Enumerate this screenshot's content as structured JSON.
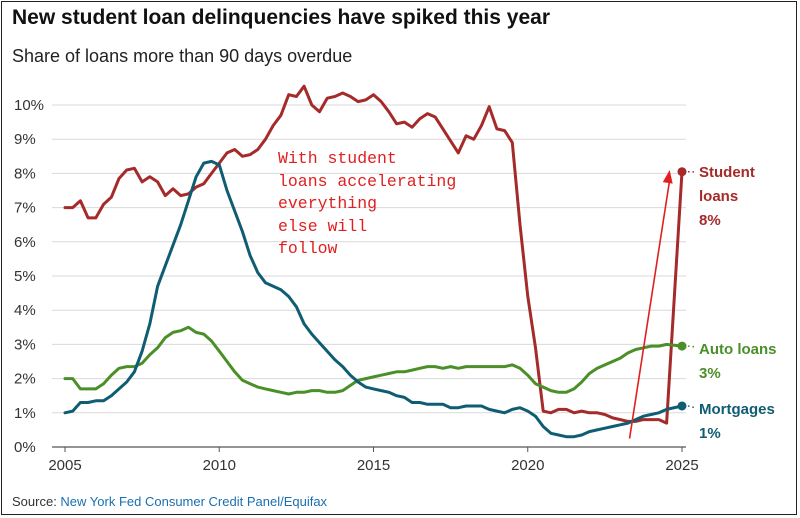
{
  "title": "New student loan delinquencies have spiked this year",
  "subtitle": "Share of loans more than 90 days overdue",
  "source_prefix": "Source: ",
  "source_link": "New York Fed Consumer Credit Panel/Equifax",
  "annotation": "With student\nloans accelerating\neverything\nelse will\nfollow",
  "colors": {
    "student": "#a52a2a",
    "auto": "#4b8f29",
    "mortgage": "#0f5d73",
    "annotation": "#e02020",
    "grid": "#d9d9d9"
  },
  "chart_data": {
    "type": "line",
    "title": "New student loan delinquencies have spiked this year",
    "subtitle": "Share of loans more than 90 days overdue",
    "xlabel": "",
    "ylabel": "",
    "xlim": [
      2005,
      2025
    ],
    "ylim": [
      0,
      10
    ],
    "x_ticks": [
      "2005",
      "2010",
      "2015",
      "2020",
      "2025"
    ],
    "y_ticks": [
      "0%",
      "1%",
      "2%",
      "3%",
      "4%",
      "5%",
      "6%",
      "7%",
      "8%",
      "9%",
      "10%"
    ],
    "grid": "horizontal",
    "series": [
      {
        "name": "Student loans",
        "label_lines": [
          "Student",
          "loans",
          "8%"
        ],
        "color_key": "student",
        "points": [
          [
            2005.0,
            7.0
          ],
          [
            2005.25,
            7.0
          ],
          [
            2005.5,
            7.2
          ],
          [
            2005.75,
            6.7
          ],
          [
            2006.0,
            6.7
          ],
          [
            2006.25,
            7.1
          ],
          [
            2006.5,
            7.3
          ],
          [
            2006.75,
            7.85
          ],
          [
            2007.0,
            8.1
          ],
          [
            2007.25,
            8.15
          ],
          [
            2007.5,
            7.75
          ],
          [
            2007.75,
            7.9
          ],
          [
            2008.0,
            7.75
          ],
          [
            2008.25,
            7.35
          ],
          [
            2008.5,
            7.55
          ],
          [
            2008.75,
            7.35
          ],
          [
            2009.0,
            7.4
          ],
          [
            2009.25,
            7.6
          ],
          [
            2009.5,
            7.7
          ],
          [
            2009.75,
            8.0
          ],
          [
            2010.0,
            8.3
          ],
          [
            2010.25,
            8.6
          ],
          [
            2010.5,
            8.7
          ],
          [
            2010.75,
            8.5
          ],
          [
            2011.0,
            8.55
          ],
          [
            2011.25,
            8.7
          ],
          [
            2011.5,
            9.0
          ],
          [
            2011.75,
            9.4
          ],
          [
            2012.0,
            9.7
          ],
          [
            2012.25,
            10.3
          ],
          [
            2012.5,
            10.25
          ],
          [
            2012.75,
            10.55
          ],
          [
            2013.0,
            10.0
          ],
          [
            2013.25,
            9.8
          ],
          [
            2013.5,
            10.2
          ],
          [
            2013.75,
            10.25
          ],
          [
            2014.0,
            10.35
          ],
          [
            2014.25,
            10.25
          ],
          [
            2014.5,
            10.1
          ],
          [
            2014.75,
            10.15
          ],
          [
            2015.0,
            10.3
          ],
          [
            2015.25,
            10.1
          ],
          [
            2015.5,
            9.8
          ],
          [
            2015.75,
            9.45
          ],
          [
            2016.0,
            9.5
          ],
          [
            2016.25,
            9.35
          ],
          [
            2016.5,
            9.6
          ],
          [
            2016.75,
            9.75
          ],
          [
            2017.0,
            9.65
          ],
          [
            2017.25,
            9.3
          ],
          [
            2017.5,
            8.95
          ],
          [
            2017.75,
            8.6
          ],
          [
            2018.0,
            9.1
          ],
          [
            2018.25,
            9.0
          ],
          [
            2018.5,
            9.4
          ],
          [
            2018.75,
            9.95
          ],
          [
            2019.0,
            9.3
          ],
          [
            2019.25,
            9.25
          ],
          [
            2019.5,
            8.9
          ],
          [
            2019.75,
            6.5
          ],
          [
            2020.0,
            4.4
          ],
          [
            2020.25,
            2.9
          ],
          [
            2020.5,
            1.05
          ],
          [
            2020.75,
            1.0
          ],
          [
            2021.0,
            1.1
          ],
          [
            2021.25,
            1.1
          ],
          [
            2021.5,
            1.0
          ],
          [
            2021.75,
            1.05
          ],
          [
            2022.0,
            1.0
          ],
          [
            2022.25,
            1.0
          ],
          [
            2022.5,
            0.95
          ],
          [
            2022.75,
            0.85
          ],
          [
            2023.0,
            0.8
          ],
          [
            2023.25,
            0.75
          ],
          [
            2023.5,
            0.75
          ],
          [
            2023.75,
            0.8
          ],
          [
            2024.0,
            0.8
          ],
          [
            2024.25,
            0.8
          ],
          [
            2024.5,
            0.7
          ],
          [
            2025.0,
            8.05
          ]
        ]
      },
      {
        "name": "Auto loans",
        "label_lines": [
          "Auto loans",
          "3%"
        ],
        "color_key": "auto",
        "points": [
          [
            2005.0,
            2.0
          ],
          [
            2005.25,
            2.0
          ],
          [
            2005.5,
            1.7
          ],
          [
            2005.75,
            1.7
          ],
          [
            2006.0,
            1.7
          ],
          [
            2006.25,
            1.85
          ],
          [
            2006.5,
            2.1
          ],
          [
            2006.75,
            2.3
          ],
          [
            2007.0,
            2.35
          ],
          [
            2007.25,
            2.35
          ],
          [
            2007.5,
            2.45
          ],
          [
            2007.75,
            2.7
          ],
          [
            2008.0,
            2.9
          ],
          [
            2008.25,
            3.2
          ],
          [
            2008.5,
            3.35
          ],
          [
            2008.75,
            3.4
          ],
          [
            2009.0,
            3.5
          ],
          [
            2009.25,
            3.35
          ],
          [
            2009.5,
            3.3
          ],
          [
            2009.75,
            3.1
          ],
          [
            2010.0,
            2.8
          ],
          [
            2010.25,
            2.5
          ],
          [
            2010.5,
            2.2
          ],
          [
            2010.75,
            1.95
          ],
          [
            2011.0,
            1.85
          ],
          [
            2011.25,
            1.75
          ],
          [
            2011.5,
            1.7
          ],
          [
            2011.75,
            1.65
          ],
          [
            2012.0,
            1.6
          ],
          [
            2012.25,
            1.55
          ],
          [
            2012.5,
            1.6
          ],
          [
            2012.75,
            1.6
          ],
          [
            2013.0,
            1.65
          ],
          [
            2013.25,
            1.65
          ],
          [
            2013.5,
            1.6
          ],
          [
            2013.75,
            1.6
          ],
          [
            2014.0,
            1.65
          ],
          [
            2014.25,
            1.8
          ],
          [
            2014.5,
            1.95
          ],
          [
            2014.75,
            2.0
          ],
          [
            2015.0,
            2.05
          ],
          [
            2015.25,
            2.1
          ],
          [
            2015.5,
            2.15
          ],
          [
            2015.75,
            2.2
          ],
          [
            2016.0,
            2.2
          ],
          [
            2016.25,
            2.25
          ],
          [
            2016.5,
            2.3
          ],
          [
            2016.75,
            2.35
          ],
          [
            2017.0,
            2.35
          ],
          [
            2017.25,
            2.3
          ],
          [
            2017.5,
            2.35
          ],
          [
            2017.75,
            2.3
          ],
          [
            2018.0,
            2.35
          ],
          [
            2018.25,
            2.35
          ],
          [
            2018.5,
            2.35
          ],
          [
            2018.75,
            2.35
          ],
          [
            2019.0,
            2.35
          ],
          [
            2019.25,
            2.35
          ],
          [
            2019.5,
            2.4
          ],
          [
            2019.75,
            2.3
          ],
          [
            2020.0,
            2.1
          ],
          [
            2020.25,
            1.85
          ],
          [
            2020.5,
            1.75
          ],
          [
            2020.75,
            1.65
          ],
          [
            2021.0,
            1.6
          ],
          [
            2021.25,
            1.6
          ],
          [
            2021.5,
            1.7
          ],
          [
            2021.75,
            1.9
          ],
          [
            2022.0,
            2.15
          ],
          [
            2022.25,
            2.3
          ],
          [
            2022.5,
            2.4
          ],
          [
            2022.75,
            2.5
          ],
          [
            2023.0,
            2.6
          ],
          [
            2023.25,
            2.75
          ],
          [
            2023.5,
            2.85
          ],
          [
            2023.75,
            2.9
          ],
          [
            2024.0,
            2.95
          ],
          [
            2024.25,
            2.95
          ],
          [
            2024.5,
            3.0
          ],
          [
            2025.0,
            2.95
          ]
        ]
      },
      {
        "name": "Mortgages",
        "label_lines": [
          "Mortgages",
          "1%"
        ],
        "color_key": "mortgage",
        "points": [
          [
            2005.0,
            1.0
          ],
          [
            2005.25,
            1.05
          ],
          [
            2005.5,
            1.3
          ],
          [
            2005.75,
            1.3
          ],
          [
            2006.0,
            1.35
          ],
          [
            2006.25,
            1.35
          ],
          [
            2006.5,
            1.5
          ],
          [
            2006.75,
            1.7
          ],
          [
            2007.0,
            1.9
          ],
          [
            2007.25,
            2.2
          ],
          [
            2007.5,
            2.8
          ],
          [
            2007.75,
            3.6
          ],
          [
            2008.0,
            4.7
          ],
          [
            2008.25,
            5.3
          ],
          [
            2008.5,
            5.9
          ],
          [
            2008.75,
            6.5
          ],
          [
            2009.0,
            7.2
          ],
          [
            2009.25,
            7.9
          ],
          [
            2009.5,
            8.3
          ],
          [
            2009.75,
            8.35
          ],
          [
            2010.0,
            8.25
          ],
          [
            2010.25,
            7.5
          ],
          [
            2010.5,
            6.9
          ],
          [
            2010.75,
            6.3
          ],
          [
            2011.0,
            5.6
          ],
          [
            2011.25,
            5.1
          ],
          [
            2011.5,
            4.8
          ],
          [
            2011.75,
            4.7
          ],
          [
            2012.0,
            4.6
          ],
          [
            2012.25,
            4.4
          ],
          [
            2012.5,
            4.1
          ],
          [
            2012.75,
            3.6
          ],
          [
            2013.0,
            3.3
          ],
          [
            2013.25,
            3.05
          ],
          [
            2013.5,
            2.8
          ],
          [
            2013.75,
            2.55
          ],
          [
            2014.0,
            2.35
          ],
          [
            2014.25,
            2.1
          ],
          [
            2014.5,
            1.9
          ],
          [
            2014.75,
            1.75
          ],
          [
            2015.0,
            1.7
          ],
          [
            2015.25,
            1.65
          ],
          [
            2015.5,
            1.6
          ],
          [
            2015.75,
            1.5
          ],
          [
            2016.0,
            1.45
          ],
          [
            2016.25,
            1.3
          ],
          [
            2016.5,
            1.3
          ],
          [
            2016.75,
            1.25
          ],
          [
            2017.0,
            1.25
          ],
          [
            2017.25,
            1.25
          ],
          [
            2017.5,
            1.15
          ],
          [
            2017.75,
            1.15
          ],
          [
            2018.0,
            1.2
          ],
          [
            2018.25,
            1.2
          ],
          [
            2018.5,
            1.2
          ],
          [
            2018.75,
            1.1
          ],
          [
            2019.0,
            1.05
          ],
          [
            2019.25,
            1.0
          ],
          [
            2019.5,
            1.1
          ],
          [
            2019.75,
            1.15
          ],
          [
            2020.0,
            1.05
          ],
          [
            2020.25,
            0.9
          ],
          [
            2020.5,
            0.6
          ],
          [
            2020.75,
            0.4
          ],
          [
            2021.0,
            0.35
          ],
          [
            2021.25,
            0.3
          ],
          [
            2021.5,
            0.3
          ],
          [
            2021.75,
            0.35
          ],
          [
            2022.0,
            0.45
          ],
          [
            2022.25,
            0.5
          ],
          [
            2022.5,
            0.55
          ],
          [
            2022.75,
            0.6
          ],
          [
            2023.0,
            0.65
          ],
          [
            2023.25,
            0.7
          ],
          [
            2023.5,
            0.8
          ],
          [
            2023.75,
            0.9
          ],
          [
            2024.0,
            0.95
          ],
          [
            2024.25,
            1.0
          ],
          [
            2024.5,
            1.1
          ],
          [
            2025.0,
            1.2
          ]
        ]
      }
    ],
    "arrow": {
      "from": [
        2023.3,
        0.25
      ],
      "to": [
        2024.6,
        8.1
      ]
    },
    "annotation": "With student loans accelerating everything else will follow"
  }
}
